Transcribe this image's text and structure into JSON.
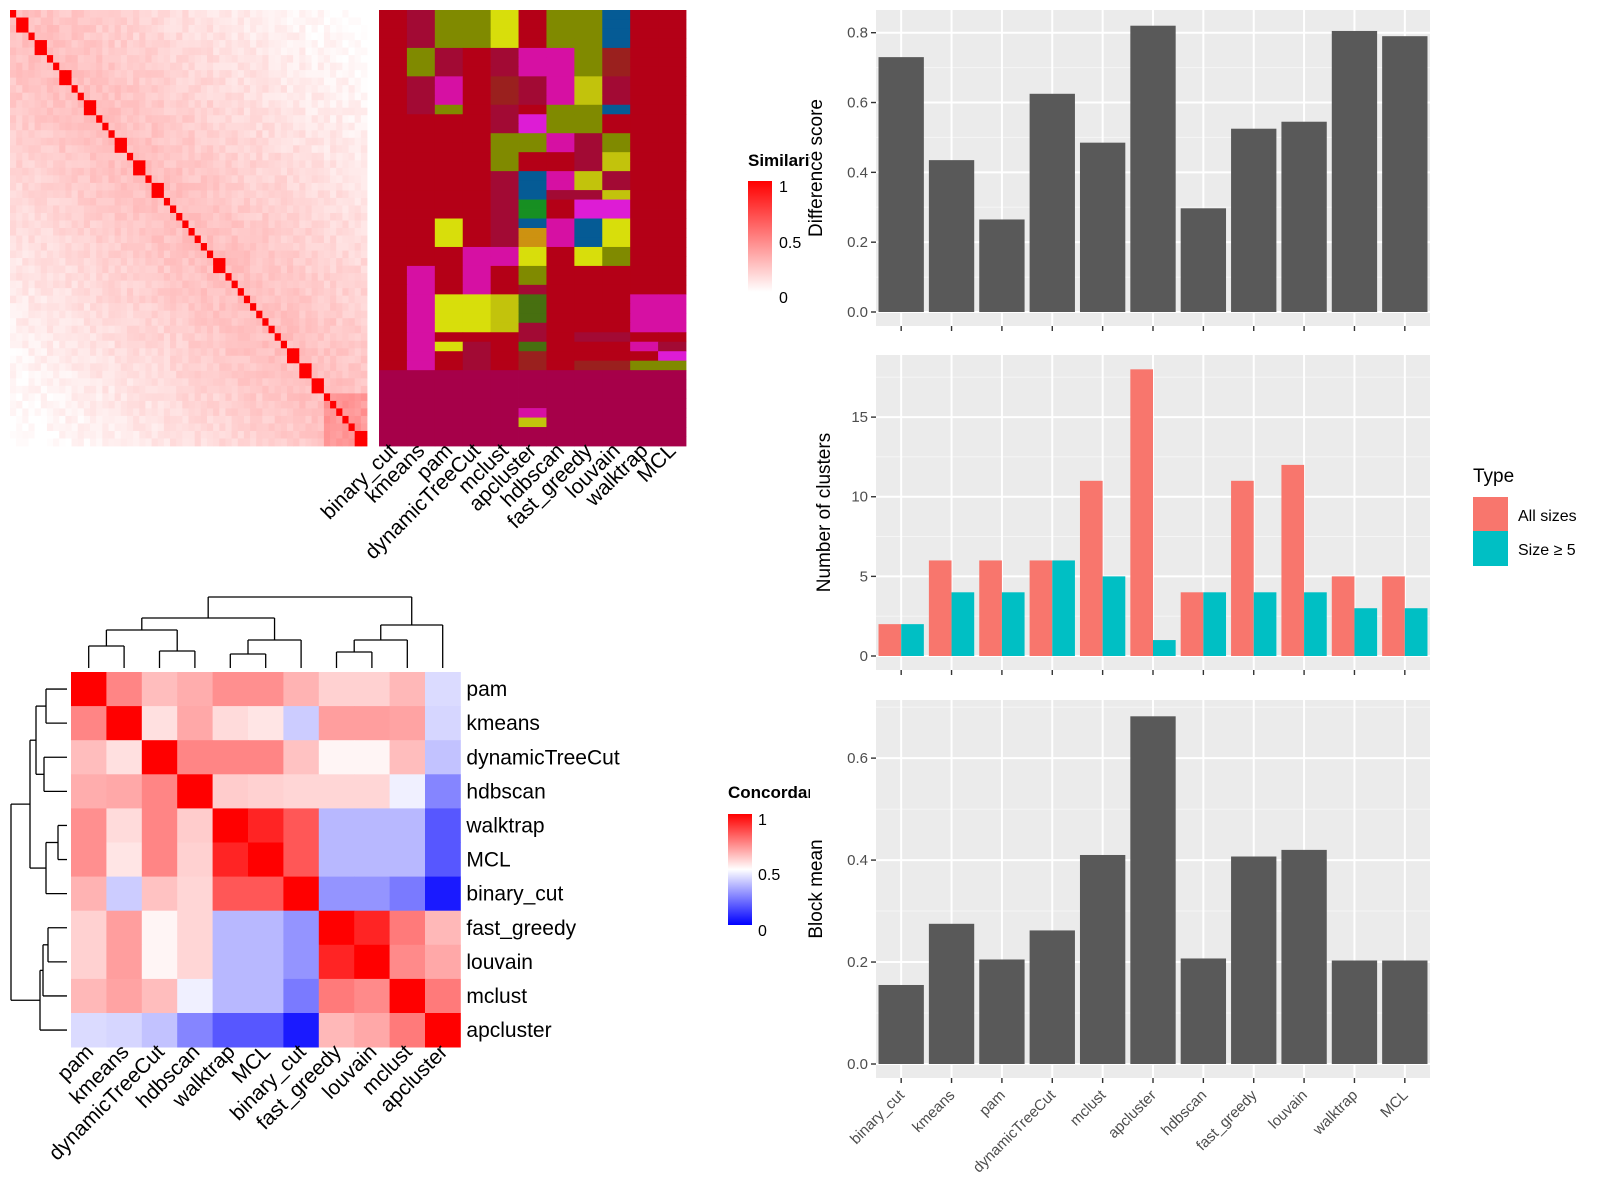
{
  "chart_data": [
    {
      "type": "heatmap",
      "id": "similarity_heatmap",
      "legend": {
        "title": "Similarity",
        "ticks": [
          "1",
          "0.5",
          "0"
        ],
        "low_color": "#ffffff",
        "high_color": "#ff0000"
      },
      "block_sizes": [
        1,
        2,
        1,
        2,
        1,
        1,
        2,
        1,
        1,
        2,
        1,
        1,
        1,
        2,
        1,
        2,
        1,
        2,
        1,
        1,
        1,
        1,
        1,
        1,
        1,
        1,
        2,
        1,
        1,
        1,
        1,
        1,
        1,
        1,
        1,
        1,
        1,
        2,
        2,
        2,
        1,
        1,
        1,
        1,
        1,
        2
      ]
    },
    {
      "type": "heatmap",
      "id": "cluster_membership",
      "columns": [
        "binary_cut",
        "kmeans",
        "pam",
        "dynamicTreeCut",
        "mclust",
        "apcluster",
        "hdbscan",
        "fast_greedy",
        "louvain",
        "walktrap",
        "MCL"
      ],
      "palette": {
        "A": "#b40017",
        "B": "#a20a34",
        "C": "#808a00",
        "D": "#d8de0b",
        "E": "#055b95",
        "F": "#d610a3",
        "G": "#c2c30c",
        "H": "#178f22",
        "I": "#cd9211",
        "J": "#9a201e",
        "K": "#dd1cd5",
        "L": "#476f10",
        "M": "#a60049"
      }
    },
    {
      "type": "heatmap",
      "id": "concordance_heatmap",
      "rows": [
        "pam",
        "kmeans",
        "dynamicTreeCut",
        "hdbscan",
        "walktrap",
        "MCL",
        "binary_cut",
        "fast_greedy",
        "louvain",
        "mclust",
        "apcluster"
      ],
      "columns": [
        "pam",
        "kmeans",
        "dynamicTreeCut",
        "hdbscan",
        "walktrap",
        "MCL",
        "binary_cut",
        "fast_greedy",
        "louvain",
        "mclust",
        "apcluster"
      ],
      "values": [
        [
          1.0,
          0.74,
          0.63,
          0.66,
          0.72,
          0.72,
          0.65,
          0.59,
          0.59,
          0.64,
          0.43
        ],
        [
          0.74,
          1.0,
          0.56,
          0.67,
          0.57,
          0.55,
          0.4,
          0.69,
          0.69,
          0.68,
          0.42
        ],
        [
          0.63,
          0.56,
          1.0,
          0.74,
          0.74,
          0.74,
          0.62,
          0.52,
          0.52,
          0.63,
          0.38
        ],
        [
          0.66,
          0.67,
          0.74,
          1.0,
          0.6,
          0.59,
          0.58,
          0.58,
          0.58,
          0.47,
          0.26
        ],
        [
          0.72,
          0.57,
          0.74,
          0.6,
          1.0,
          0.93,
          0.83,
          0.36,
          0.36,
          0.36,
          0.17
        ],
        [
          0.72,
          0.55,
          0.74,
          0.59,
          0.93,
          1.0,
          0.83,
          0.36,
          0.36,
          0.36,
          0.17
        ],
        [
          0.65,
          0.4,
          0.62,
          0.58,
          0.83,
          0.83,
          1.0,
          0.29,
          0.29,
          0.24,
          0.05
        ],
        [
          0.59,
          0.69,
          0.52,
          0.58,
          0.36,
          0.36,
          0.29,
          1.0,
          0.93,
          0.76,
          0.64
        ],
        [
          0.59,
          0.69,
          0.52,
          0.58,
          0.36,
          0.36,
          0.29,
          0.93,
          1.0,
          0.73,
          0.67
        ],
        [
          0.64,
          0.68,
          0.63,
          0.47,
          0.36,
          0.36,
          0.24,
          0.76,
          0.73,
          1.0,
          0.76
        ],
        [
          0.43,
          0.42,
          0.38,
          0.26,
          0.17,
          0.17,
          0.05,
          0.64,
          0.67,
          0.76,
          1.0
        ]
      ],
      "legend": {
        "title": "Concordance",
        "ticks": [
          "1",
          "0.5",
          "0"
        ],
        "low_color": "#0000ff",
        "mid_color": "#ffffff",
        "high_color": "#ff0000"
      }
    },
    {
      "type": "bar",
      "id": "difference_score",
      "categories": [
        "binary_cut",
        "kmeans",
        "pam",
        "dynamicTreeCut",
        "mclust",
        "apcluster",
        "hdbscan",
        "fast_greedy",
        "louvain",
        "walktrap",
        "MCL"
      ],
      "values": [
        0.73,
        0.435,
        0.265,
        0.625,
        0.485,
        0.82,
        0.297,
        0.525,
        0.545,
        0.805,
        0.79
      ],
      "ylabel": "Difference score",
      "ylim": [
        0,
        0.8
      ],
      "yticks": [
        "0.0",
        "0.2",
        "0.4",
        "0.6",
        "0.8"
      ],
      "grid": true,
      "bar_color": "#595959"
    },
    {
      "type": "bar",
      "id": "number_of_clusters",
      "categories": [
        "binary_cut",
        "kmeans",
        "pam",
        "dynamicTreeCut",
        "mclust",
        "apcluster",
        "hdbscan",
        "fast_greedy",
        "louvain",
        "walktrap",
        "MCL"
      ],
      "series": [
        {
          "name": "All sizes",
          "values": [
            2,
            6,
            6,
            6,
            11,
            18,
            4,
            11,
            12,
            5,
            5
          ],
          "color": "#f8766d"
        },
        {
          "name": "Size ≥ 5",
          "values": [
            2,
            4,
            4,
            6,
            5,
            1,
            4,
            4,
            4,
            3,
            3
          ],
          "color": "#00bfc4"
        }
      ],
      "ylabel": "Number of clusters",
      "yticks": [
        "0",
        "5",
        "10",
        "15"
      ],
      "legend": {
        "title": "Type",
        "position": "right"
      },
      "grid": true
    },
    {
      "type": "bar",
      "id": "block_mean",
      "categories": [
        "binary_cut",
        "kmeans",
        "pam",
        "dynamicTreeCut",
        "mclust",
        "apcluster",
        "hdbscan",
        "fast_greedy",
        "louvain",
        "walktrap",
        "MCL"
      ],
      "values": [
        0.155,
        0.275,
        0.205,
        0.262,
        0.41,
        0.682,
        0.207,
        0.407,
        0.42,
        0.203,
        0.203
      ],
      "ylabel": "Block mean",
      "yticks": [
        "0.0",
        "0.2",
        "0.4",
        "0.6"
      ],
      "grid": true,
      "bar_color": "#595959"
    }
  ]
}
